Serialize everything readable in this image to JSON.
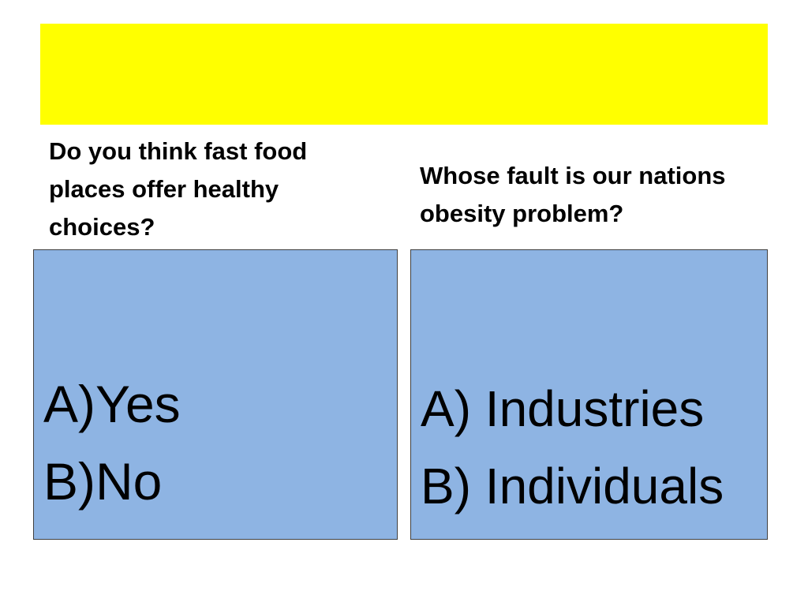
{
  "slide": {
    "title_bar_color": "#ffff00",
    "box_color": "#8eb4e3",
    "left": {
      "question": "Do you think fast food places offer healthy choices?",
      "answers": [
        "A)Yes",
        "B)No"
      ]
    },
    "right": {
      "question": "Whose fault is our nations obesity problem?",
      "answers": [
        "A) Industries",
        "B) Individuals"
      ]
    }
  }
}
